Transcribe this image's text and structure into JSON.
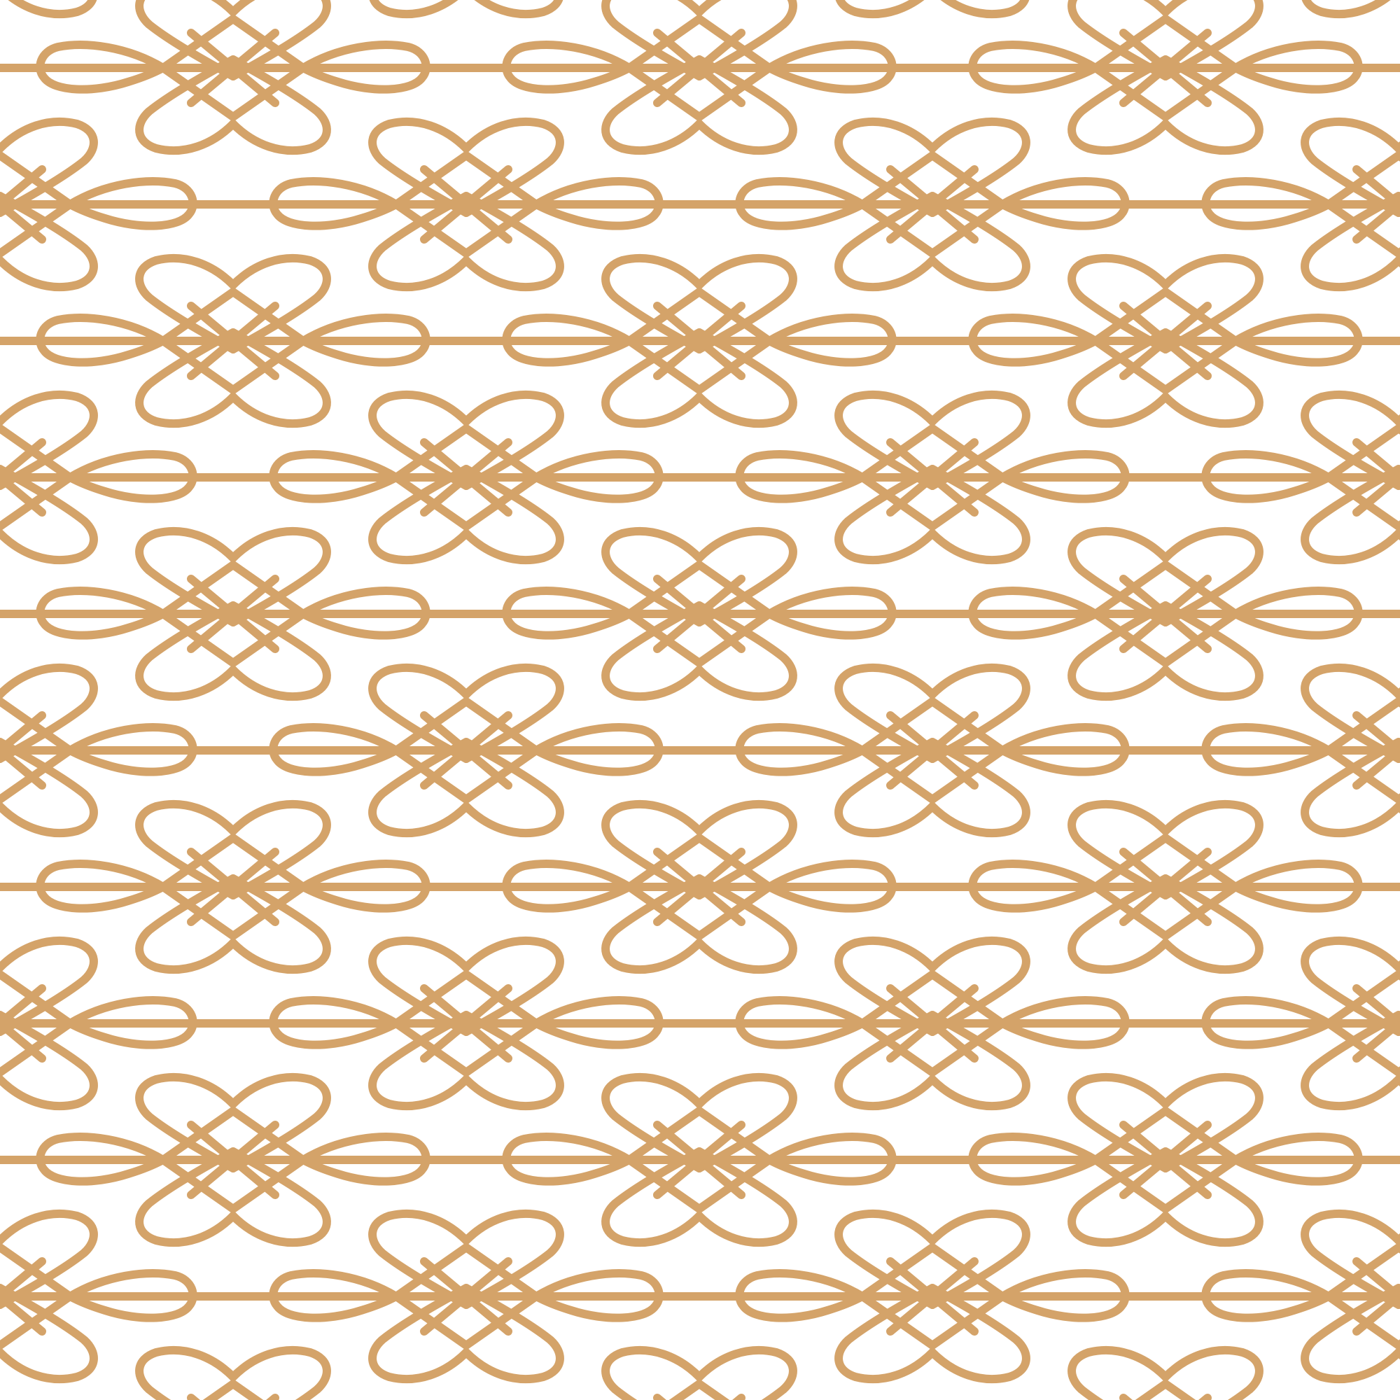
{
  "pattern": {
    "name": "ornamental-knot-lattice",
    "background_color": "#ffffff",
    "stroke_color": "#d4a369",
    "motif": "interlaced-looped-knots-on-horizontal-lines",
    "layout": "staggered-rows"
  }
}
